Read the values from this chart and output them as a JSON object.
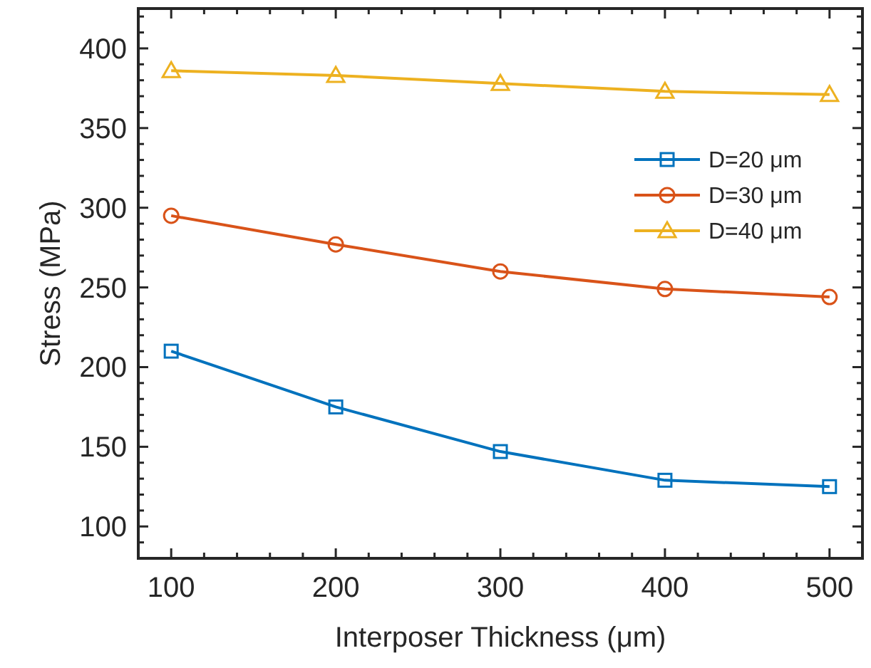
{
  "chart_data": {
    "type": "line",
    "xlabel": "Interposer Thickness (μm)",
    "ylabel": "Stress (MPa)",
    "x": [
      100,
      200,
      300,
      400,
      500
    ],
    "series": [
      {
        "name": "D=20 μm",
        "color": "#0072bd",
        "marker": "square",
        "values": [
          210,
          175,
          147,
          129,
          125
        ]
      },
      {
        "name": "D=30 μm",
        "color": "#d95319",
        "marker": "circle",
        "values": [
          295,
          277,
          260,
          249,
          244
        ]
      },
      {
        "name": "D=40 μm",
        "color": "#edb120",
        "marker": "triangle",
        "values": [
          386,
          383,
          378,
          373,
          371
        ]
      }
    ],
    "xlim": [
      80,
      520
    ],
    "ylim": [
      80,
      425
    ],
    "xticks": [
      {
        "value": 80,
        "label": null
      },
      100,
      {
        "value": 120,
        "label": null
      },
      {
        "value": 140,
        "label": null
      },
      {
        "value": 160,
        "label": null
      },
      {
        "value": 180,
        "label": null
      },
      200,
      {
        "value": 220,
        "label": null
      },
      {
        "value": 240,
        "label": null
      },
      {
        "value": 260,
        "label": null
      },
      {
        "value": 280,
        "label": null
      },
      300,
      {
        "value": 320,
        "label": null
      },
      {
        "value": 340,
        "label": null
      },
      {
        "value": 360,
        "label": null
      },
      {
        "value": 380,
        "label": null
      },
      400,
      {
        "value": 420,
        "label": null
      },
      {
        "value": 440,
        "label": null
      },
      {
        "value": 460,
        "label": null
      },
      {
        "value": 480,
        "label": null
      },
      500,
      {
        "value": 520,
        "label": null
      }
    ],
    "yticks": [
      {
        "value": 80,
        "label": null
      },
      {
        "value": 90,
        "label": null
      },
      100,
      {
        "value": 110,
        "label": null
      },
      {
        "value": 120,
        "label": null
      },
      {
        "value": 130,
        "label": null
      },
      {
        "value": 140,
        "label": null
      },
      150,
      {
        "value": 160,
        "label": null
      },
      {
        "value": 170,
        "label": null
      },
      {
        "value": 180,
        "label": null
      },
      {
        "value": 190,
        "label": null
      },
      200,
      {
        "value": 210,
        "label": null
      },
      {
        "value": 220,
        "label": null
      },
      {
        "value": 230,
        "label": null
      },
      {
        "value": 240,
        "label": null
      },
      250,
      {
        "value": 260,
        "label": null
      },
      {
        "value": 270,
        "label": null
      },
      {
        "value": 280,
        "label": null
      },
      {
        "value": 290,
        "label": null
      },
      300,
      {
        "value": 310,
        "label": null
      },
      {
        "value": 320,
        "label": null
      },
      {
        "value": 330,
        "label": null
      },
      {
        "value": 340,
        "label": null
      },
      350,
      {
        "value": 360,
        "label": null
      },
      {
        "value": 370,
        "label": null
      },
      {
        "value": 380,
        "label": null
      },
      {
        "value": 390,
        "label": null
      },
      400,
      {
        "value": 410,
        "label": null
      },
      {
        "value": 420,
        "label": null
      }
    ],
    "grid": false,
    "legend": "right",
    "line_style": "solid"
  }
}
